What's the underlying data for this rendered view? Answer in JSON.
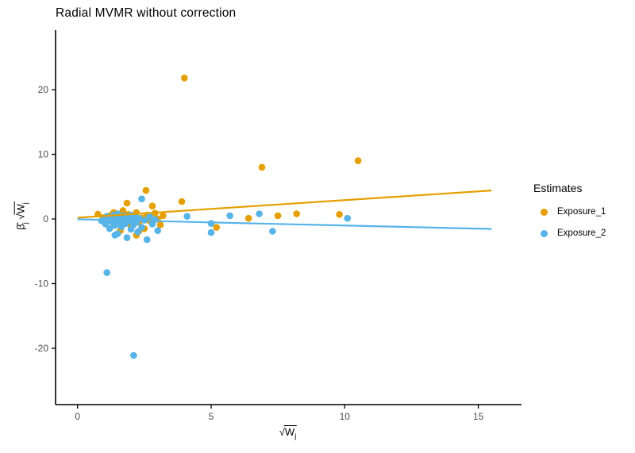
{
  "title": "Radial MVMR without correction",
  "axis_labels": {
    "beta_hat": "β̂",
    "sub_j": "j",
    "sqrt": "√",
    "w": "W"
  },
  "legend": {
    "title": "Estimates",
    "items": [
      {
        "label": "Exposure_1",
        "color": "#E69F00"
      },
      {
        "label": "Exposure_2",
        "color": "#56B4E9"
      }
    ]
  },
  "colors": {
    "exposure_1": "#E69F00",
    "exposure_2": "#56B4E9",
    "axis_line": "#000000",
    "tick_label": "#4d4d4d",
    "background": "#ffffff"
  },
  "chart_data": {
    "type": "scatter",
    "title": "Radial MVMR without correction",
    "xlabel": "sqrt(W_j)",
    "ylabel": "beta_hat_j * sqrt(W_j)",
    "xlim": [
      -0.8,
      16.6
    ],
    "ylim": [
      -29,
      29
    ],
    "x_ticks": [
      0,
      5,
      10,
      15
    ],
    "y_ticks": [
      -20,
      -10,
      0,
      10,
      20
    ],
    "grid": false,
    "legend_title": "Estimates",
    "legend_position": "right",
    "point_radius": 4.3,
    "series": [
      {
        "name": "Exposure_1",
        "color": "#E69F00",
        "points": [
          [
            4.0,
            21.8
          ],
          [
            10.5,
            9.0
          ],
          [
            6.9,
            8.0
          ],
          [
            2.56,
            4.4
          ],
          [
            3.9,
            2.7
          ],
          [
            2.8,
            2.0
          ],
          [
            1.85,
            2.45
          ],
          [
            1.7,
            1.3
          ],
          [
            2.2,
            1.0
          ],
          [
            1.35,
            1.0
          ],
          [
            2.9,
            0.9
          ],
          [
            1.4,
            0.9
          ],
          [
            0.76,
            0.74
          ],
          [
            1.9,
            0.7
          ],
          [
            2.6,
            0.6
          ],
          [
            3.2,
            0.5
          ],
          [
            1.2,
            0.5
          ],
          [
            2.1,
            0.3
          ],
          [
            0.96,
            0.2
          ],
          [
            2.4,
            0.15
          ],
          [
            1.5,
            0.1
          ],
          [
            3.0,
            0.0
          ],
          [
            1.8,
            -0.2
          ],
          [
            2.7,
            -0.3
          ],
          [
            1.3,
            -0.4
          ],
          [
            2.3,
            -0.5
          ],
          [
            1.6,
            -0.6
          ],
          [
            3.1,
            -0.9
          ],
          [
            2.0,
            -1.1
          ],
          [
            2.5,
            -1.5
          ],
          [
            1.6,
            -1.8
          ],
          [
            2.3,
            -1.9
          ],
          [
            2.2,
            -2.5
          ],
          [
            5.2,
            -1.3
          ],
          [
            6.4,
            0.1
          ],
          [
            7.5,
            0.5
          ],
          [
            8.2,
            0.8
          ],
          [
            9.8,
            0.7
          ]
        ]
      },
      {
        "name": "Exposure_2",
        "color": "#56B4E9",
        "points": [
          [
            2.4,
            3.1
          ],
          [
            0.9,
            -0.3
          ],
          [
            1.0,
            0.1
          ],
          [
            1.05,
            -0.8
          ],
          [
            1.1,
            0.4
          ],
          [
            1.15,
            -0.2
          ],
          [
            1.2,
            -1.5
          ],
          [
            1.25,
            0.2
          ],
          [
            1.3,
            -0.5
          ],
          [
            1.35,
            0.6
          ],
          [
            1.4,
            -1.0
          ],
          [
            1.45,
            0.0
          ],
          [
            1.5,
            -2.3
          ],
          [
            1.5,
            0.8
          ],
          [
            1.55,
            -0.4
          ],
          [
            1.6,
            0.3
          ],
          [
            1.65,
            -1.2
          ],
          [
            1.7,
            -0.1
          ],
          [
            1.75,
            0.5
          ],
          [
            1.8,
            -0.7
          ],
          [
            1.85,
            -2.9
          ],
          [
            1.9,
            0.2
          ],
          [
            1.95,
            -0.3
          ],
          [
            2.0,
            -1.6
          ],
          [
            2.0,
            0.6
          ],
          [
            2.05,
            -0.15
          ],
          [
            2.1,
            -0.9
          ],
          [
            2.15,
            0.35
          ],
          [
            2.2,
            -0.5
          ],
          [
            2.25,
            -2.0
          ],
          [
            2.3,
            0.1
          ],
          [
            2.4,
            -1.3
          ],
          [
            2.5,
            -0.2
          ],
          [
            2.6,
            -3.2
          ],
          [
            2.7,
            0.4
          ],
          [
            2.8,
            -0.8
          ],
          [
            2.9,
            -0.1
          ],
          [
            3.0,
            -1.8
          ],
          [
            1.4,
            -2.5
          ],
          [
            1.1,
            -8.3
          ],
          [
            2.1,
            -21.1
          ],
          [
            4.1,
            0.4
          ],
          [
            5.0,
            -0.7
          ],
          [
            5.0,
            -2.1
          ],
          [
            5.7,
            0.5
          ],
          [
            6.8,
            0.8
          ],
          [
            7.3,
            -1.9
          ],
          [
            10.1,
            0.1
          ]
        ]
      }
    ],
    "trend_lines": [
      {
        "series": "Exposure_1",
        "color": "#E69F00",
        "slope": 0.27,
        "x": [
          0,
          15.5
        ],
        "y": [
          0.2,
          4.4
        ]
      },
      {
        "series": "Exposure_2",
        "color": "#56B4E9",
        "slope": -0.1,
        "x": [
          0,
          15.5
        ],
        "y": [
          -0.05,
          -1.55
        ]
      }
    ]
  }
}
